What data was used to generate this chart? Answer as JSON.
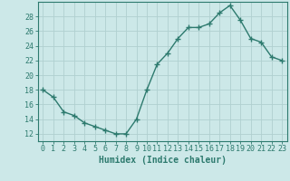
{
  "x": [
    0,
    1,
    2,
    3,
    4,
    5,
    6,
    7,
    8,
    9,
    10,
    11,
    12,
    13,
    14,
    15,
    16,
    17,
    18,
    19,
    20,
    21,
    22,
    23
  ],
  "y": [
    18,
    17,
    15,
    14.5,
    13.5,
    13,
    12.5,
    12,
    12,
    14,
    18,
    21.5,
    23,
    25,
    26.5,
    26.5,
    27,
    28.5,
    29.5,
    27.5,
    25,
    24.5,
    22.5,
    22
  ],
  "line_color": "#2d7a6e",
  "marker": "+",
  "marker_color": "#2d7a6e",
  "bg_color": "#cce8e8",
  "grid_color": "#b0d0d0",
  "xlabel": "Humidex (Indice chaleur)",
  "xlabel_fontsize": 7,
  "xlim": [
    -0.5,
    23.5
  ],
  "ylim": [
    11,
    30
  ],
  "yticks": [
    12,
    14,
    16,
    18,
    20,
    22,
    24,
    26,
    28
  ],
  "xticks": [
    0,
    1,
    2,
    3,
    4,
    5,
    6,
    7,
    8,
    9,
    10,
    11,
    12,
    13,
    14,
    15,
    16,
    17,
    18,
    19,
    20,
    21,
    22,
    23
  ],
  "tick_color": "#2d7a6e",
  "tick_fontsize": 6,
  "spine_color": "#2d7a6e",
  "linewidth": 1.0,
  "markersize": 4
}
